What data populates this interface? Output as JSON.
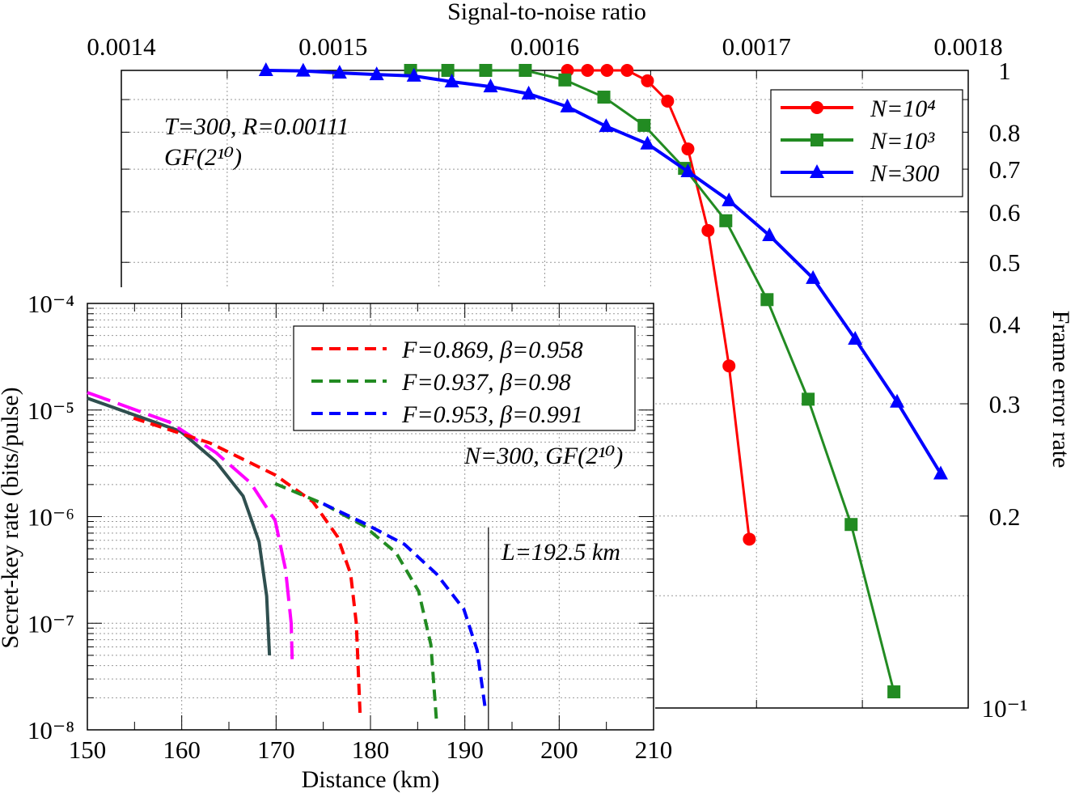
{
  "chart_data": [
    {
      "type": "line",
      "title": "",
      "xlabel": "Signal-to-noise ratio",
      "ylabel": "Frame error rate",
      "x_axis_position": "top",
      "y_axis_position": "right",
      "xlim": [
        0.0014,
        0.0018
      ],
      "ylim": [
        0.1,
        1
      ],
      "yscale": "log",
      "grid": true,
      "x_ticks": [
        0.0014,
        0.0015,
        0.0016,
        0.0017,
        0.0018
      ],
      "x_tick_labels": [
        "0.0014",
        "0.0015",
        "0.0016",
        "0.0017",
        "0.0018"
      ],
      "y_ticks": [
        1,
        0.8,
        0.7,
        0.6,
        0.5,
        0.4,
        0.3,
        0.2,
        0.1
      ],
      "y_tick_labels": [
        "1",
        "0.8",
        "0.7",
        "0.6",
        "0.5",
        "0.4",
        "0.3",
        "0.2",
        "10⁻¹"
      ],
      "legend_position": "top-right",
      "annotations": [
        "T=300, R=0.00111",
        "GF(2¹⁰)"
      ],
      "series": [
        {
          "name": "N=10⁴",
          "color": "#ff0000",
          "marker": "circle",
          "x": [
            0.0016107,
            0.0016202,
            0.0016294,
            0.0016389,
            0.0016485,
            0.001658,
            0.0016676,
            0.0016771,
            0.001687,
            0.0016966
          ],
          "y": [
            1,
            1,
            1,
            1,
            0.963,
            0.895,
            0.753,
            0.561,
            0.344,
            0.184
          ]
        },
        {
          "name": "N=10³",
          "color": "#228b22",
          "marker": "square",
          "x": [
            0.0015366,
            0.0015542,
            0.0015721,
            0.0015908,
            0.0016095,
            0.0016279,
            0.0016469,
            0.001666,
            0.0016855,
            0.001705,
            0.0017244,
            0.0017447,
            0.0017649
          ],
          "y": [
            1,
            1,
            1,
            1,
            0.966,
            0.908,
            0.82,
            0.702,
            0.581,
            0.437,
            0.305,
            0.194,
            0.106
          ]
        },
        {
          "name": "N=300",
          "color": "#0000ff",
          "marker": "triangle",
          "x": [
            0.0014683,
            0.0014859,
            0.0015031,
            0.0015206,
            0.0015382,
            0.0015561,
            0.0015744,
            0.0015924,
            0.0016107,
            0.001629,
            0.0016485,
            0.0016676,
            0.001687,
            0.0017061,
            0.0017267,
            0.0017466,
            0.0017664,
            0.001787
          ],
          "y": [
            1,
            0.998,
            0.991,
            0.985,
            0.98,
            0.96,
            0.943,
            0.919,
            0.877,
            0.817,
            0.767,
            0.694,
            0.625,
            0.551,
            0.472,
            0.379,
            0.302,
            0.233
          ]
        }
      ]
    },
    {
      "type": "line",
      "title": "",
      "xlabel": "Distance (km)",
      "ylabel": "Secret-key rate (bits/pulse)",
      "xlim": [
        150,
        210
      ],
      "ylim": [
        1e-08,
        0.0001
      ],
      "yscale": "log",
      "grid": true,
      "x_ticks": [
        150,
        160,
        170,
        180,
        190,
        200,
        210
      ],
      "x_tick_labels": [
        "150",
        "160",
        "170",
        "180",
        "190",
        "200",
        "210"
      ],
      "y_ticks": [
        0.0001,
        1e-05,
        1e-06,
        1e-07,
        1e-08
      ],
      "y_tick_labels": [
        "10⁻⁴",
        "10⁻⁵",
        "10⁻⁶",
        "10⁻⁷",
        "10⁻⁸"
      ],
      "legend_position": "top-right",
      "annotations": [
        "N=300, GF(2¹⁰)",
        "L=192.5 km"
      ],
      "vertical_line_x": 192.5,
      "series": [
        {
          "color": "#2f4f4f",
          "style": "solid",
          "x": [
            150,
            159.9,
            163.6,
            166.5,
            168.2,
            169.0,
            169.3
          ],
          "y": [
            1.29e-05,
            6.3e-06,
            3.3e-06,
            1.56e-06,
            5.8e-07,
            1.8e-07,
            5e-08
          ]
        },
        {
          "color": "#ff00ff",
          "style": "long-dash",
          "x": [
            150,
            158.7,
            163.6,
            167.3,
            169.9,
            171.0,
            171.6,
            171.7
          ],
          "y": [
            1.46e-05,
            7.7e-06,
            4e-06,
            2.07e-06,
            9.2e-07,
            3.2e-07,
            1e-07,
            4.6e-08
          ]
        },
        {
          "name": "F=0.869, β=0.958",
          "color": "#ff0000",
          "style": "dash",
          "x": [
            154.9,
            163.0,
            169.9,
            173.9,
            176.5,
            177.9,
            178.5,
            178.9
          ],
          "y": [
            8.4e-06,
            4.9e-06,
            2.46e-06,
            1.38e-06,
            6.5e-07,
            2.9e-07,
            1e-07,
            1.4e-08
          ]
        },
        {
          "name": "F=0.937, β=0.98",
          "color": "#228b22",
          "style": "dash",
          "x": [
            169.9,
            175.0,
            179.3,
            182.7,
            185.1,
            186.4,
            187.0
          ],
          "y": [
            2.04e-06,
            1.32e-06,
            8.2e-07,
            4.6e-07,
            2e-07,
            6.3e-08,
            1.2e-08
          ]
        },
        {
          "name": "F=0.953, β=0.991",
          "color": "#0000ff",
          "style": "dash",
          "x": [
            175.0,
            179.3,
            183.6,
            187.0,
            189.9,
            191.3,
            192.2
          ],
          "y": [
            1.32e-06,
            8.7e-07,
            5.5e-07,
            2.9e-07,
            1.35e-07,
            5.6e-08,
            1.5e-08
          ]
        }
      ]
    }
  ]
}
